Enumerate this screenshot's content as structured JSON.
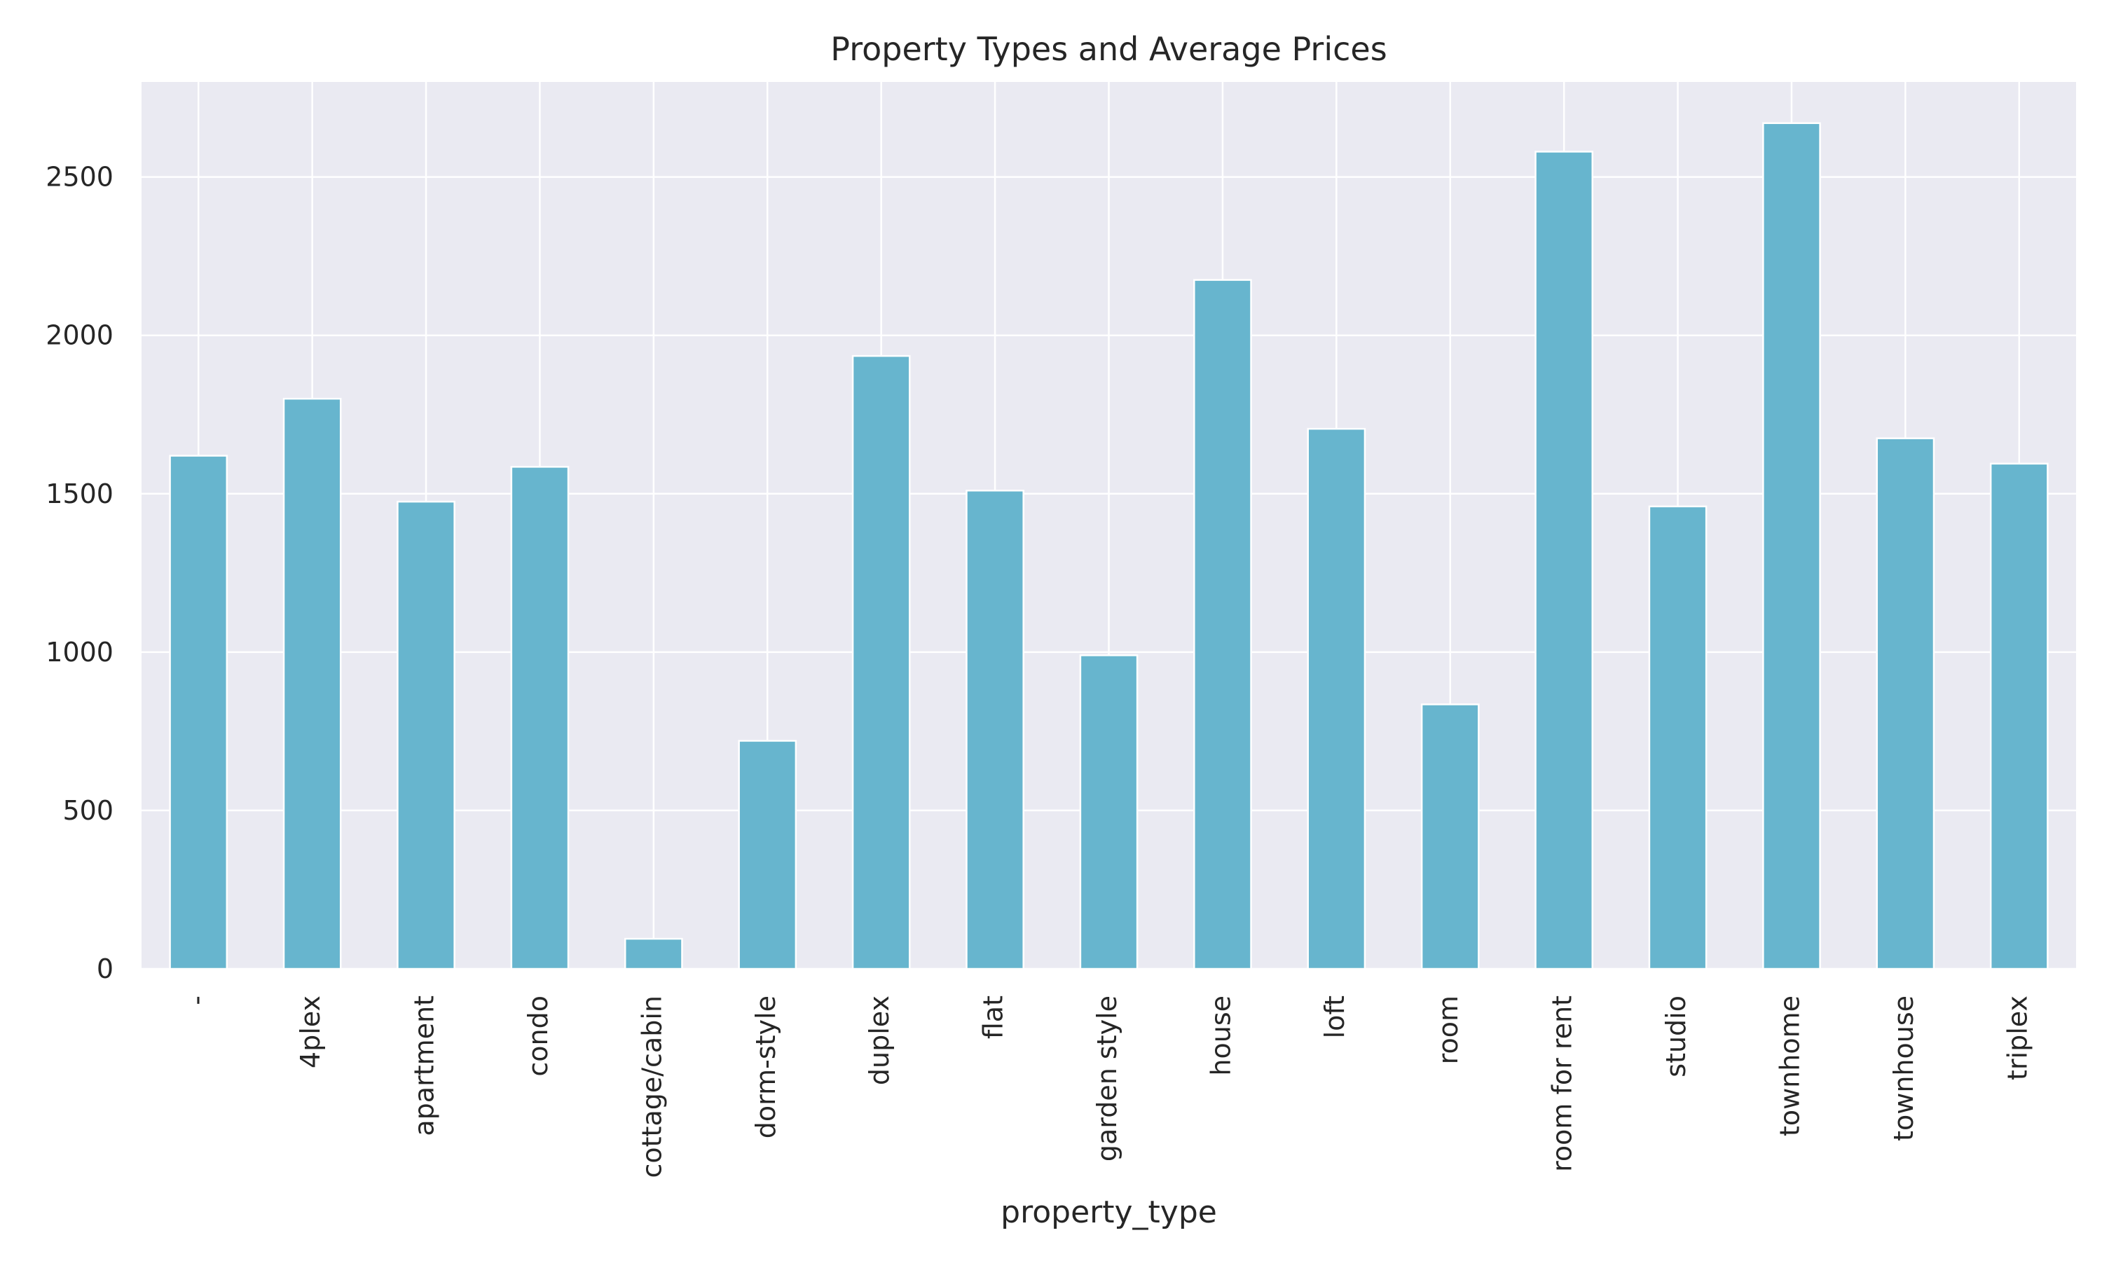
{
  "chart_data": {
    "type": "bar",
    "title": "Property Types and Average Prices",
    "xlabel": "property_type",
    "ylabel": "",
    "categories": [
      "-",
      "4plex",
      "apartment",
      "condo",
      "cottage/cabin",
      "dorm-style",
      "duplex",
      "flat",
      "garden style",
      "house",
      "loft",
      "room",
      "room for rent",
      "studio",
      "townhome",
      "townhouse",
      "triplex"
    ],
    "values": [
      1620,
      1800,
      1475,
      1585,
      95,
      720,
      1935,
      1510,
      990,
      2175,
      1705,
      835,
      2580,
      1460,
      2670,
      1675,
      1595
    ],
    "yticks": [
      0,
      500,
      1000,
      1500,
      2000,
      2500
    ],
    "ylim": [
      0,
      2800
    ],
    "grid": true,
    "colors": {
      "bar": "#67b5ce",
      "plot_background": "#eaeaf2",
      "grid": "#ffffff",
      "text": "#262626"
    }
  }
}
